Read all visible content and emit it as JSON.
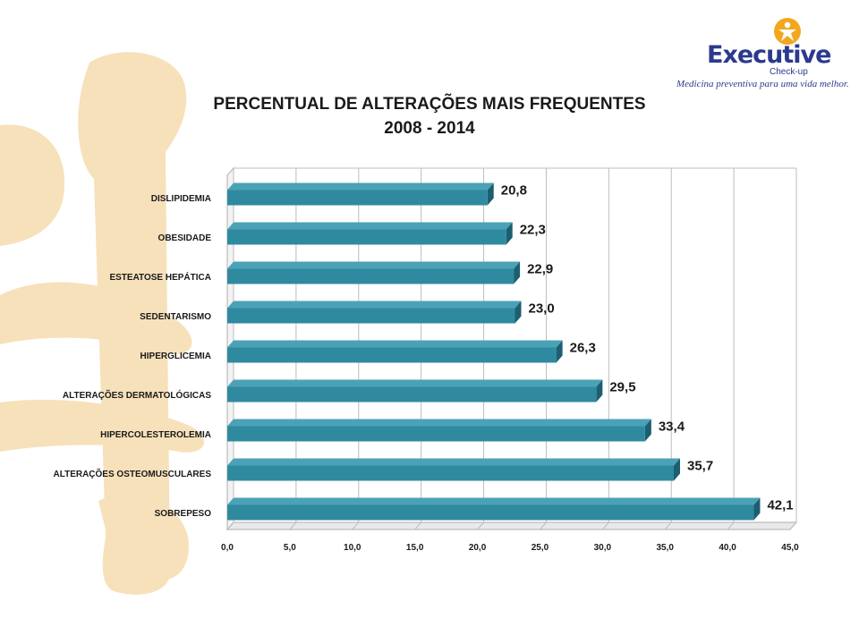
{
  "logo": {
    "word": "Executive",
    "sub": "Check-up",
    "tagline": "Medicina preventiva para uma vida melhor."
  },
  "colors": {
    "bar_front": "#2f8aa0",
    "bar_top": "#4ba2b6",
    "bar_side": "#1c5f70",
    "logo_blue": "#2b3a8c",
    "logo_orange": "#f2a81d",
    "decoration": "#f6dcae"
  },
  "chart_data": {
    "type": "bar",
    "orientation": "horizontal",
    "title_line1": "PERCENTUAL DE ALTERAÇÕES  MAIS FREQUENTES",
    "title_line2": "2008 - 2014",
    "categories": [
      "DISLIPIDEMIA",
      "OBESIDADE",
      "ESTEATOSE HEPÁTICA",
      "SEDENTARISMO",
      "HIPERGLICEMIA",
      "ALTERAÇÕES DERMATOLÓGICAS",
      "HIPERCOLESTEROLEMIA",
      "ALTERAÇÕES OSTEOMUSCULARES",
      "SOBREPESO"
    ],
    "values": [
      20.8,
      22.3,
      22.9,
      23.0,
      26.3,
      29.5,
      33.4,
      35.7,
      42.1
    ],
    "value_labels": [
      "20,8",
      "22,3",
      "22,9",
      "23,0",
      "26,3",
      "29,5",
      "33,4",
      "35,7",
      "42,1"
    ],
    "xlim": [
      0,
      45
    ],
    "xticks": [
      "0,0",
      "5,0",
      "10,0",
      "15,0",
      "20,0",
      "25,0",
      "30,0",
      "35,0",
      "40,0",
      "45,0"
    ],
    "grid": true
  }
}
